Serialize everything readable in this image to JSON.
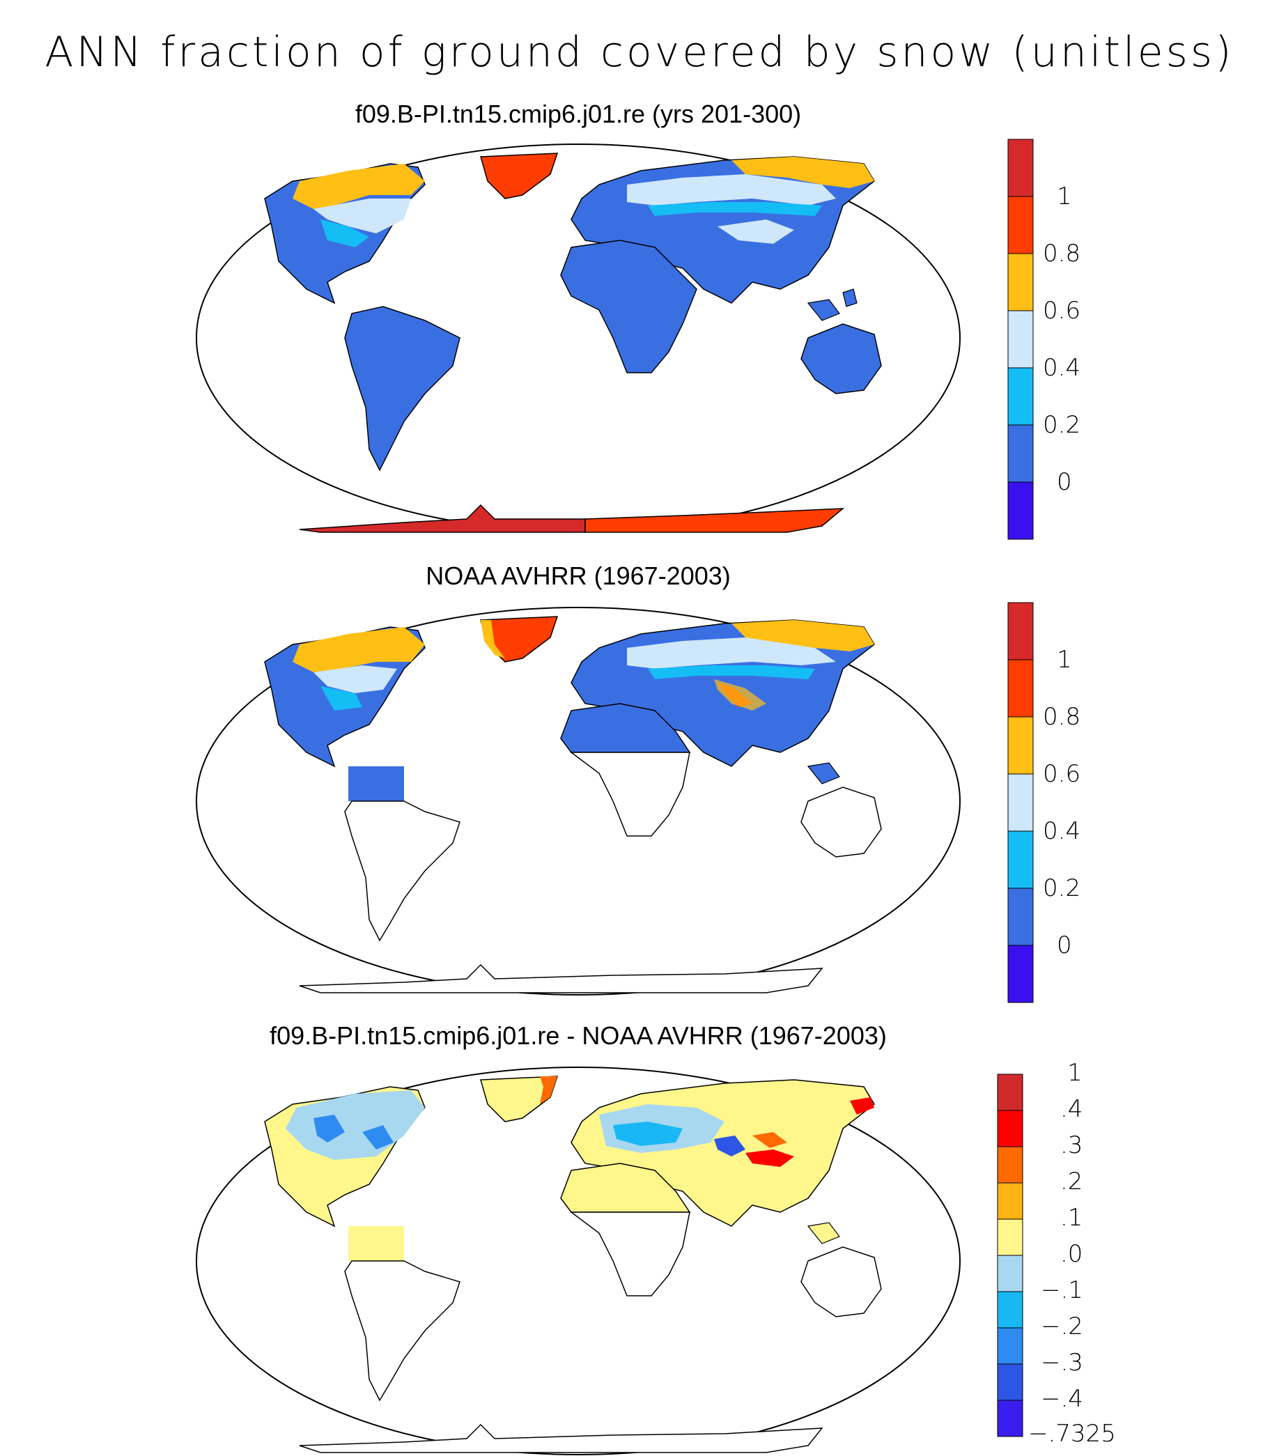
{
  "title": "ANN fraction of ground covered by snow (unitless)",
  "panels": [
    {
      "id": "model",
      "title": "f09.B-PI.tn15.cmip6.j01.re (yrs 201-300)"
    },
    {
      "id": "obs",
      "title": "NOAA AVHRR (1967-2003)"
    },
    {
      "id": "diff",
      "title": "f09.B-PI.tn15.cmip6.j01.re - NOAA AVHRR (1967-2003)"
    }
  ],
  "colorbars": {
    "abs": {
      "labels": [
        "1",
        "0.8",
        "0.6",
        "0.4",
        "0.2",
        "0"
      ],
      "colors": [
        "#d62a2a",
        "#ff3d00",
        "#ffbf14",
        "#cfe7fa",
        "#15bdf5",
        "#3a6fe2",
        "#3a10f0"
      ]
    },
    "diff": {
      "labels": [
        "1",
        ".4",
        ".3",
        ".2",
        ".1",
        ".0",
        "−.1",
        "−.2",
        "−.3",
        "−.4",
        "−.7325"
      ],
      "colors": [
        "#d02a2a",
        "#ff0000",
        "#ff6a00",
        "#ffb314",
        "#fff68c",
        "#a8d8f0",
        "#19b8f4",
        "#2e8cf0",
        "#2e56e6",
        "#3a1ef0"
      ]
    }
  },
  "colors": {
    "land_fill": "#3a6fe2",
    "ice_red": "#d62a2a",
    "ice_orange": "#ff3d00",
    "snow_yellow": "#ffbf14",
    "snow_light": "#cfe7fa",
    "snow_cyan": "#15bdf5",
    "diff_yellow": "#fff68c",
    "diff_light": "#a8d8f0",
    "diff_blue": "#2e8cf0"
  }
}
